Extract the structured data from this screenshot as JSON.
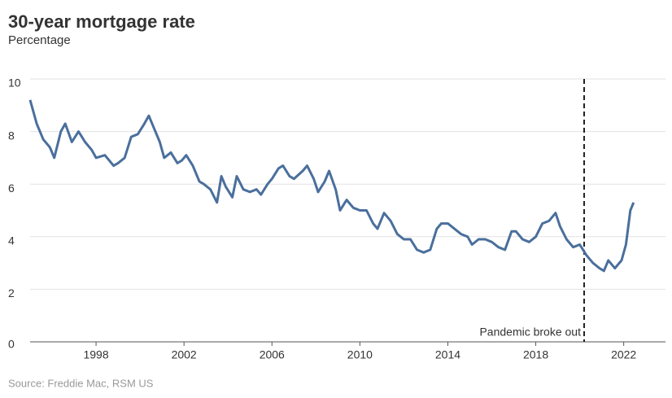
{
  "chart_data": {
    "type": "line",
    "title": "30-year mortgage rate",
    "subtitle": "Percentage",
    "source": "Source: Freddie Mac, RSM US",
    "x": [
      1995.0,
      1995.3,
      1995.6,
      1995.9,
      1996.1,
      1996.4,
      1996.6,
      1996.9,
      1997.2,
      1997.5,
      1997.8,
      1998.0,
      1998.4,
      1998.8,
      1999.0,
      1999.3,
      1999.6,
      1999.9,
      2000.2,
      2000.4,
      2000.7,
      2000.9,
      2001.1,
      2001.4,
      2001.7,
      2001.9,
      2002.1,
      2002.4,
      2002.7,
      2002.9,
      2003.2,
      2003.5,
      2003.7,
      2003.9,
      2004.2,
      2004.4,
      2004.7,
      2005.0,
      2005.3,
      2005.5,
      2005.8,
      2006.0,
      2006.3,
      2006.5,
      2006.8,
      2007.0,
      2007.4,
      2007.6,
      2007.9,
      2008.1,
      2008.4,
      2008.6,
      2008.9,
      2009.1,
      2009.4,
      2009.7,
      2010.0,
      2010.3,
      2010.6,
      2010.8,
      2011.1,
      2011.4,
      2011.7,
      2012.0,
      2012.3,
      2012.6,
      2012.9,
      2013.2,
      2013.5,
      2013.7,
      2014.0,
      2014.3,
      2014.6,
      2014.9,
      2015.1,
      2015.4,
      2015.7,
      2016.0,
      2016.3,
      2016.6,
      2016.9,
      2017.1,
      2017.4,
      2017.7,
      2018.0,
      2018.3,
      2018.6,
      2018.9,
      2019.1,
      2019.4,
      2019.7,
      2020.0,
      2020.3,
      2020.6,
      2020.9,
      2021.1,
      2021.3,
      2021.6,
      2021.9,
      2022.1,
      2022.3,
      2022.45
    ],
    "series": [
      {
        "name": "30-year mortgage rate",
        "color": "#4a6f9c",
        "values": [
          9.2,
          8.3,
          7.7,
          7.4,
          7.0,
          8.0,
          8.3,
          7.6,
          8.0,
          7.6,
          7.3,
          7.0,
          7.1,
          6.7,
          6.8,
          7.0,
          7.8,
          7.9,
          8.3,
          8.6,
          8.0,
          7.6,
          7.0,
          7.2,
          6.8,
          6.9,
          7.1,
          6.7,
          6.1,
          6.0,
          5.8,
          5.3,
          6.3,
          5.9,
          5.5,
          6.3,
          5.8,
          5.7,
          5.8,
          5.6,
          6.0,
          6.2,
          6.6,
          6.7,
          6.3,
          6.2,
          6.5,
          6.7,
          6.2,
          5.7,
          6.1,
          6.5,
          5.8,
          5.0,
          5.4,
          5.1,
          5.0,
          5.0,
          4.5,
          4.3,
          4.9,
          4.6,
          4.1,
          3.9,
          3.9,
          3.5,
          3.4,
          3.5,
          4.3,
          4.5,
          4.5,
          4.3,
          4.1,
          4.0,
          3.7,
          3.9,
          3.9,
          3.8,
          3.6,
          3.5,
          4.2,
          4.2,
          3.9,
          3.8,
          4.0,
          4.5,
          4.6,
          4.9,
          4.4,
          3.9,
          3.6,
          3.7,
          3.3,
          3.0,
          2.8,
          2.7,
          3.1,
          2.8,
          3.1,
          3.7,
          5.0,
          5.3
        ]
      }
    ],
    "xlim": [
      1995.0,
      2023.9
    ],
    "xticks": [
      1998,
      2002,
      2006,
      2010,
      2014,
      2018,
      2022
    ],
    "ylim": [
      0,
      10
    ],
    "yticks": [
      0,
      2,
      4,
      6,
      8,
      10
    ],
    "grid": true,
    "annotation": {
      "text": "Pandemic broke out",
      "x": 2020.2
    }
  }
}
